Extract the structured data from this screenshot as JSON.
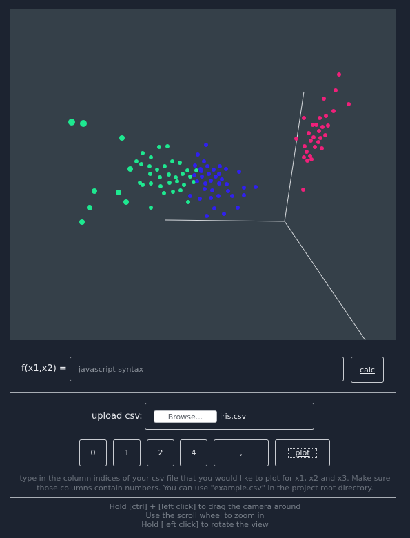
{
  "plot": {
    "background": "#354049",
    "axis_color": "#d6d9dd",
    "series": [
      {
        "color": "#1ee890",
        "points": [
          [
            104,
            177,
            5
          ],
          [
            121,
            179,
            5
          ],
          [
            177,
            200,
            4
          ],
          [
            207,
            222,
            3
          ],
          [
            219,
            228,
            3
          ],
          [
            231,
            213,
            3
          ],
          [
            243,
            212,
            3
          ],
          [
            198,
            234,
            3
          ],
          [
            205,
            238,
            3
          ],
          [
            189,
            245,
            4
          ],
          [
            217,
            241,
            3
          ],
          [
            228,
            246,
            3
          ],
          [
            239,
            241,
            3
          ],
          [
            250,
            234,
            3
          ],
          [
            261,
            236,
            3
          ],
          [
            272,
            247,
            3
          ],
          [
            218,
            252,
            3
          ],
          [
            232,
            257,
            3
          ],
          [
            245,
            253,
            3
          ],
          [
            255,
            257,
            3
          ],
          [
            265,
            252,
            3
          ],
          [
            276,
            256,
            3
          ],
          [
            203,
            265,
            3
          ],
          [
            207,
            268,
            3
          ],
          [
            219,
            266,
            3
          ],
          [
            233,
            270,
            3
          ],
          [
            246,
            265,
            3
          ],
          [
            257,
            263,
            3
          ],
          [
            267,
            268,
            3
          ],
          [
            281,
            264,
            3
          ],
          [
            137,
            277,
            4
          ],
          [
            172,
            279,
            4
          ],
          [
            238,
            280,
            3
          ],
          [
            251,
            278,
            3
          ],
          [
            262,
            276,
            3
          ],
          [
            183,
            293,
            4
          ],
          [
            130,
            301,
            4
          ],
          [
            219,
            301,
            3
          ],
          [
            119,
            322,
            4
          ],
          [
            273,
            293,
            3
          ],
          [
            285,
            247,
            3
          ]
        ]
      },
      {
        "color": "#3020f0",
        "points": [
          [
            299,
            210,
            3
          ],
          [
            287,
            224,
            3
          ],
          [
            296,
            234,
            3
          ],
          [
            283,
            240,
            3
          ],
          [
            291,
            245,
            3
          ],
          [
            301,
            241,
            3
          ],
          [
            310,
            246,
            3
          ],
          [
            319,
            241,
            3
          ],
          [
            328,
            245,
            3
          ],
          [
            347,
            249,
            3
          ],
          [
            282,
            254,
            3
          ],
          [
            293,
            256,
            3
          ],
          [
            303,
            252,
            3
          ],
          [
            313,
            256,
            3
          ],
          [
            322,
            260,
            3
          ],
          [
            286,
            263,
            3
          ],
          [
            298,
            266,
            3
          ],
          [
            306,
            262,
            3
          ],
          [
            318,
            266,
            3
          ],
          [
            329,
            267,
            3
          ],
          [
            297,
            274,
            3
          ],
          [
            308,
            276,
            3
          ],
          [
            331,
            277,
            3
          ],
          [
            354,
            272,
            3
          ],
          [
            371,
            271,
            3
          ],
          [
            276,
            284,
            3
          ],
          [
            290,
            288,
            3
          ],
          [
            306,
            287,
            3
          ],
          [
            317,
            284,
            3
          ],
          [
            337,
            284,
            3
          ],
          [
            354,
            283,
            3
          ],
          [
            311,
            302,
            3
          ],
          [
            345,
            301,
            3
          ],
          [
            300,
            313,
            3
          ],
          [
            325,
            310,
            3
          ],
          [
            292,
            248,
            3
          ],
          [
            318,
            252,
            3
          ]
        ]
      },
      {
        "color": "#f0207a",
        "points": [
          [
            492,
            108,
            3
          ],
          [
            487,
            131,
            3
          ],
          [
            470,
            143,
            3
          ],
          [
            506,
            151,
            3
          ],
          [
            484,
            161,
            3
          ],
          [
            441,
            171,
            3
          ],
          [
            464,
            171,
            3
          ],
          [
            473,
            168,
            3
          ],
          [
            459,
            181,
            3
          ],
          [
            468,
            184,
            3
          ],
          [
            476,
            182,
            3
          ],
          [
            463,
            190,
            3
          ],
          [
            472,
            196,
            3
          ],
          [
            448,
            193,
            3
          ],
          [
            455,
            199,
            3
          ],
          [
            430,
            201,
            3
          ],
          [
            451,
            204,
            3
          ],
          [
            462,
            206,
            3
          ],
          [
            442,
            212,
            3
          ],
          [
            457,
            213,
            3
          ],
          [
            467,
            215,
            3
          ],
          [
            445,
            220,
            3
          ],
          [
            450,
            226,
            3
          ],
          [
            441,
            228,
            3
          ],
          [
            446,
            233,
            3
          ],
          [
            452,
            231,
            3
          ],
          [
            440,
            275,
            3
          ],
          [
            454,
            181,
            3
          ],
          [
            465,
            200,
            3
          ]
        ]
      }
    ]
  },
  "function": {
    "label": "f(x1,x2) =",
    "placeholder": "javascript syntax",
    "calc_label": "calc"
  },
  "upload": {
    "label": "upload csv:",
    "browse_label": "Browse...",
    "filename": "iris.csv"
  },
  "columns": {
    "values": [
      "0",
      "1",
      "2",
      "4"
    ],
    "separator": ",",
    "plot_label": "plot"
  },
  "help_text": "type in the column indices of your csv file that you would like to plot for x1, x2 and x3. Make sure those columns contain numbers. You can use \"example.csv\" in the project root directory.",
  "controls": {
    "line1": "Hold [ctrl] + [left click] to drag the camera around",
    "line2": "Use the scroll wheel to zoom in",
    "line3": "Hold [left click] to rotate the view"
  }
}
